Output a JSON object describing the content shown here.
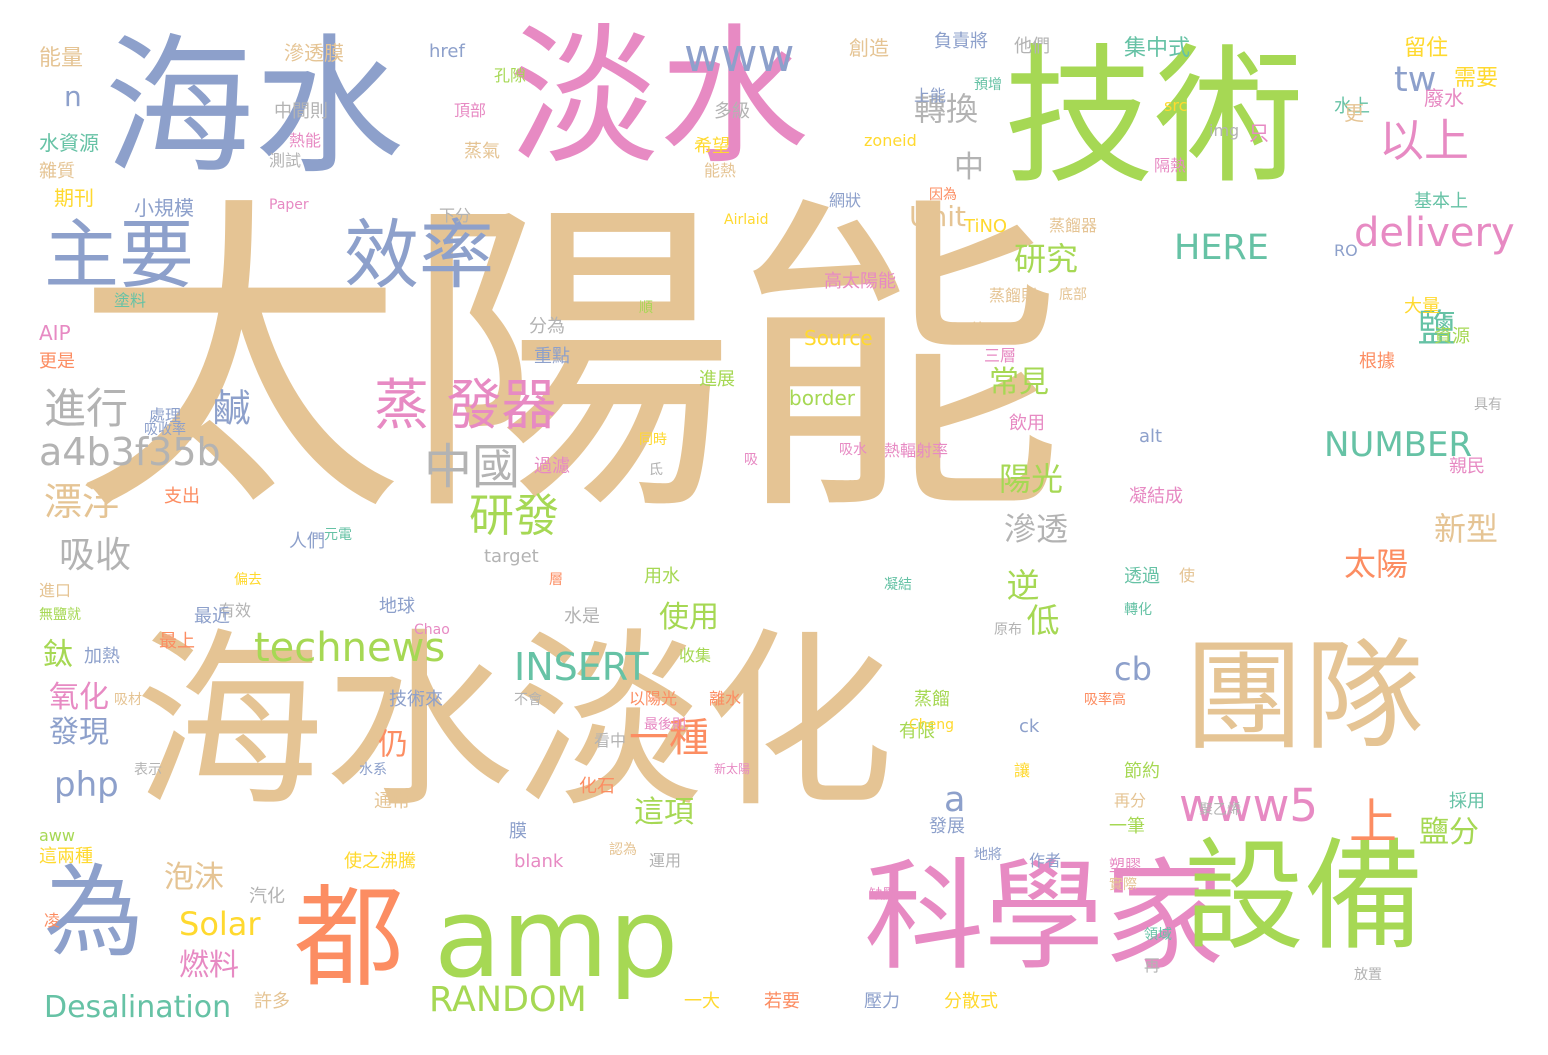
{
  "words": [
    {
      "text": "太陽能",
      "color": "#E5C494"
    },
    {
      "text": "海水淡化",
      "color": "#E5C494"
    },
    {
      "text": "海水",
      "color": "#8DA0CB"
    },
    {
      "text": "淡水",
      "color": "#E78AC3"
    },
    {
      "text": "技術",
      "color": "#A6D854"
    },
    {
      "text": "團隊",
      "color": "#E5C494"
    },
    {
      "text": "科學家",
      "color": "#E78AC3"
    },
    {
      "text": "設備",
      "color": "#A6D854"
    },
    {
      "text": "amp",
      "color": "#A6D854"
    },
    {
      "text": "都",
      "color": "#FC8D62"
    },
    {
      "text": "為",
      "color": "#8DA0CB"
    },
    {
      "text": "主要",
      "color": "#8DA0CB"
    },
    {
      "text": "效率",
      "color": "#8DA0CB"
    },
    {
      "text": "蒸 發器",
      "color": "#E78AC3"
    },
    {
      "text": "www",
      "color": "#8DA0CB"
    },
    {
      "text": "tw",
      "color": "#8DA0CB"
    },
    {
      "text": "以上",
      "color": "#E78AC3"
    },
    {
      "text": "delivery",
      "color": "#E78AC3"
    },
    {
      "text": "HERE",
      "color": "#66C2A5"
    },
    {
      "text": "NUMBER",
      "color": "#66C2A5"
    },
    {
      "text": "www5",
      "color": "#E78AC3"
    },
    {
      "text": "上",
      "color": "#FC8D62"
    },
    {
      "text": "technews",
      "color": "#A6D854"
    },
    {
      "text": "INSERT",
      "color": "#66C2A5"
    },
    {
      "text": "RANDOM",
      "color": "#A6D854"
    },
    {
      "text": "Desalination",
      "color": "#66C2A5"
    },
    {
      "text": "Solar",
      "color": "#FFD92F"
    },
    {
      "text": "php",
      "color": "#8DA0CB"
    },
    {
      "text": "a4b3f35b",
      "color": "#B3B3B3"
    },
    {
      "text": "進行",
      "color": "#B3B3B3"
    },
    {
      "text": "漂浮",
      "color": "#E5C494"
    },
    {
      "text": "吸收",
      "color": "#B3B3B3"
    },
    {
      "text": "中國",
      "color": "#B3B3B3"
    },
    {
      "text": "研發",
      "color": "#A6D854"
    },
    {
      "text": "一種",
      "color": "#FC8D62"
    },
    {
      "text": "研究",
      "color": "#A6D854"
    },
    {
      "text": "轉換",
      "color": "#B3B3B3"
    },
    {
      "text": "陽光",
      "color": "#A6D854"
    },
    {
      "text": "滲透",
      "color": "#B3B3B3"
    },
    {
      "text": "新型",
      "color": "#E5C494"
    },
    {
      "text": "太陽",
      "color": "#FC8D62"
    },
    {
      "text": "鹽分",
      "color": "#A6D854"
    },
    {
      "text": "常見",
      "color": "#A6D854"
    },
    {
      "text": "使用",
      "color": "#A6D854"
    },
    {
      "text": "這項",
      "color": "#A6D854"
    },
    {
      "text": "發現",
      "color": "#8DA0CB"
    },
    {
      "text": "氧化",
      "color": "#E78AC3"
    },
    {
      "text": "泡沫",
      "color": "#E5C494"
    },
    {
      "text": "燃料",
      "color": "#E78AC3"
    },
    {
      "text": "Unit",
      "color": "#E5C494"
    },
    {
      "text": "cb",
      "color": "#8DA0CB"
    },
    {
      "text": "a",
      "color": "#8DA0CB"
    },
    {
      "text": "n",
      "color": "#8DA0CB"
    },
    {
      "text": "中",
      "color": "#B3B3B3"
    },
    {
      "text": "鹹",
      "color": "#8DA0CB",
      "vertical": true
    },
    {
      "text": "鹽",
      "color": "#66C2A5",
      "vertical": true
    },
    {
      "text": "逆",
      "color": "#A6D854",
      "vertical": true
    },
    {
      "text": "低",
      "color": "#A6D854",
      "vertical": true
    },
    {
      "text": "仍",
      "color": "#FC8D62",
      "vertical": true
    },
    {
      "text": "鈦",
      "color": "#A6D854",
      "vertical": true
    },
    {
      "text": "滲透膜",
      "color": "#E5C494"
    },
    {
      "text": "href",
      "color": "#8DA0CB"
    },
    {
      "text": "創造",
      "color": "#E5C494"
    },
    {
      "text": "負責將",
      "color": "#8DA0CB"
    },
    {
      "text": "他們",
      "color": "#B3B3B3"
    },
    {
      "text": "集中式",
      "color": "#66C2A5"
    },
    {
      "text": "留住",
      "color": "#FFD92F"
    },
    {
      "text": "需要",
      "color": "#FFD92F"
    },
    {
      "text": "能量",
      "color": "#E5C494"
    },
    {
      "text": "孔隙",
      "color": "#A6D854"
    },
    {
      "text": "頂部",
      "color": "#E78AC3"
    },
    {
      "text": "預增",
      "color": "#66C2A5"
    },
    {
      "text": "上能",
      "color": "#8DA0CB"
    },
    {
      "text": "水上",
      "color": "#66C2A5"
    },
    {
      "text": "廢水",
      "color": "#E78AC3"
    },
    {
      "text": "src",
      "color": "#FFD92F"
    },
    {
      "text": "更",
      "color": "#E5C494"
    },
    {
      "text": "img",
      "color": "#B3B3B3"
    },
    {
      "text": "只",
      "color": "#E78AC3"
    },
    {
      "text": "中間則",
      "color": "#B3B3B3"
    },
    {
      "text": "多級",
      "color": "#B3B3B3"
    },
    {
      "text": "水資源",
      "color": "#66C2A5"
    },
    {
      "text": "熱能",
      "color": "#E78AC3"
    },
    {
      "text": "雜質",
      "color": "#E5C494"
    },
    {
      "text": "測試",
      "color": "#B3B3B3"
    },
    {
      "text": "蒸氣",
      "color": "#E5C494"
    },
    {
      "text": "希望",
      "color": "#FFD92F"
    },
    {
      "text": "能熱",
      "color": "#E5C494"
    },
    {
      "text": "zoneid",
      "color": "#FFD92F"
    },
    {
      "text": "隔熱",
      "color": "#E78AC3"
    },
    {
      "text": "期刊",
      "color": "#FFD92F"
    },
    {
      "text": "小規模",
      "color": "#8DA0CB"
    },
    {
      "text": "Paper",
      "color": "#E78AC3"
    },
    {
      "text": "下分",
      "color": "#B3B3B3"
    },
    {
      "text": "因為",
      "color": "#FC8D62"
    },
    {
      "text": "網狀",
      "color": "#8DA0CB"
    },
    {
      "text": "Airlaid",
      "color": "#FFD92F"
    },
    {
      "text": "TiNO",
      "color": "#FFD92F"
    },
    {
      "text": "蒸餾器",
      "color": "#E5C494"
    },
    {
      "text": "基本上",
      "color": "#66C2A5"
    },
    {
      "text": "RO",
      "color": "#8DA0CB"
    },
    {
      "text": "塗料",
      "color": "#66C2A5"
    },
    {
      "text": "高太陽能",
      "color": "#E78AC3"
    },
    {
      "text": "蒸餾則",
      "color": "#E5C494"
    },
    {
      "text": "底部",
      "color": "#E5C494"
    },
    {
      "text": "大量",
      "color": "#FFD92F"
    },
    {
      "text": "資源",
      "color": "#A6D854"
    },
    {
      "text": "AIP",
      "color": "#E78AC3"
    },
    {
      "text": "更是",
      "color": "#FC8D62"
    },
    {
      "text": "分為",
      "color": "#B3B3B3"
    },
    {
      "text": "順",
      "color": "#A6D854"
    },
    {
      "text": "Source",
      "color": "#FFD92F"
    },
    {
      "text": "佔",
      "color": "#E5C494"
    },
    {
      "text": "三層",
      "color": "#E78AC3"
    },
    {
      "text": "重點",
      "color": "#8DA0CB"
    },
    {
      "text": "根據",
      "color": "#FC8D62"
    },
    {
      "text": "處理",
      "color": "#8DA0CB"
    },
    {
      "text": "吸收率",
      "color": "#8DA0CB"
    },
    {
      "text": "進展",
      "color": "#A6D854"
    },
    {
      "text": "border",
      "color": "#A6D854"
    },
    {
      "text": "具有",
      "color": "#B3B3B3"
    },
    {
      "text": "飲用",
      "color": "#E78AC3"
    },
    {
      "text": "alt",
      "color": "#8DA0CB"
    },
    {
      "text": "過濾",
      "color": "#E78AC3"
    },
    {
      "text": "同時",
      "color": "#FFD92F"
    },
    {
      "text": "吸",
      "color": "#E78AC3"
    },
    {
      "text": "吸水",
      "color": "#E78AC3"
    },
    {
      "text": "熱輻射率",
      "color": "#E78AC3"
    },
    {
      "text": "親民",
      "color": "#E78AC3"
    },
    {
      "text": "支出",
      "color": "#FC8D62"
    },
    {
      "text": "氐",
      "color": "#B3B3B3"
    },
    {
      "text": "凝結成",
      "color": "#E78AC3"
    },
    {
      "text": "人們",
      "color": "#8DA0CB"
    },
    {
      "text": "元電",
      "color": "#66C2A5"
    },
    {
      "text": "target",
      "color": "#B3B3B3"
    },
    {
      "text": "進口",
      "color": "#E5C494"
    },
    {
      "text": "偏去",
      "color": "#FFD92F"
    },
    {
      "text": "層",
      "color": "#FC8D62"
    },
    {
      "text": "用水",
      "color": "#A6D854"
    },
    {
      "text": "透過",
      "color": "#66C2A5"
    },
    {
      "text": "使",
      "color": "#E5C494"
    },
    {
      "text": "無鹽就",
      "color": "#A6D854"
    },
    {
      "text": "有效",
      "color": "#B3B3B3"
    },
    {
      "text": "最近",
      "color": "#8DA0CB"
    },
    {
      "text": "地球",
      "color": "#8DA0CB"
    },
    {
      "text": "水是",
      "color": "#B3B3B3"
    },
    {
      "text": "凝結",
      "color": "#66C2A5"
    },
    {
      "text": "轉化",
      "color": "#66C2A5"
    },
    {
      "text": "最上",
      "color": "#FC8D62"
    },
    {
      "text": "Chao",
      "color": "#E78AC3"
    },
    {
      "text": "原布",
      "color": "#B3B3B3"
    },
    {
      "text": "加熱",
      "color": "#8DA0CB"
    },
    {
      "text": "收集",
      "color": "#A6D854"
    },
    {
      "text": "技術來",
      "color": "#8DA0CB"
    },
    {
      "text": "以陽光",
      "color": "#FC8D62"
    },
    {
      "text": "離水",
      "color": "#FC8D62"
    },
    {
      "text": "蒸餾",
      "color": "#A6D854"
    },
    {
      "text": "有限",
      "color": "#A6D854"
    },
    {
      "text": "吸材",
      "color": "#E5C494"
    },
    {
      "text": "不會",
      "color": "#B3B3B3"
    },
    {
      "text": "吸率高",
      "color": "#FC8D62"
    },
    {
      "text": "最後則",
      "color": "#E78AC3"
    },
    {
      "text": "Cheng",
      "color": "#FFD92F"
    },
    {
      "text": "ck",
      "color": "#8DA0CB"
    },
    {
      "text": "看中",
      "color": "#B3B3B3"
    },
    {
      "text": "表示",
      "color": "#B3B3B3"
    },
    {
      "text": "水系",
      "color": "#8DA0CB"
    },
    {
      "text": "化石",
      "color": "#FC8D62"
    },
    {
      "text": "新太陽",
      "color": "#E78AC3"
    },
    {
      "text": "讓",
      "color": "#FFD92F"
    },
    {
      "text": "節約",
      "color": "#A6D854"
    },
    {
      "text": "再分",
      "color": "#E5C494"
    },
    {
      "text": "採用",
      "color": "#66C2A5"
    },
    {
      "text": "aww",
      "color": "#A6D854"
    },
    {
      "text": "通常",
      "color": "#E5C494"
    },
    {
      "text": "膜",
      "color": "#8DA0CB"
    },
    {
      "text": "聚乙烯",
      "color": "#B3B3B3"
    },
    {
      "text": "這兩種",
      "color": "#FFD92F"
    },
    {
      "text": "blank",
      "color": "#E78AC3"
    },
    {
      "text": "認為",
      "color": "#E5C494"
    },
    {
      "text": "運用",
      "color": "#B3B3B3"
    },
    {
      "text": "發展",
      "color": "#8DA0CB"
    },
    {
      "text": "地將",
      "color": "#8DA0CB"
    },
    {
      "text": "作者",
      "color": "#8DA0CB"
    },
    {
      "text": "一筆",
      "color": "#A6D854"
    },
    {
      "text": "塑膠",
      "color": "#E78AC3"
    },
    {
      "text": "使之沸騰",
      "color": "#FFD92F"
    },
    {
      "text": "汽化",
      "color": "#B3B3B3"
    },
    {
      "text": "缺點",
      "color": "#E78AC3"
    },
    {
      "text": "實際",
      "color": "#E5C494"
    },
    {
      "text": "凌",
      "color": "#FC8D62"
    },
    {
      "text": "領域",
      "color": "#66C2A5"
    },
    {
      "text": "再",
      "color": "#B3B3B3"
    },
    {
      "text": "許多",
      "color": "#E5C494"
    },
    {
      "text": "一大",
      "color": "#FFD92F"
    },
    {
      "text": "若要",
      "color": "#FC8D62"
    },
    {
      "text": "壓力",
      "color": "#8DA0CB"
    },
    {
      "text": "分散式",
      "color": "#FFD92F"
    },
    {
      "text": "放置",
      "color": "#B3B3B3"
    }
  ]
}
